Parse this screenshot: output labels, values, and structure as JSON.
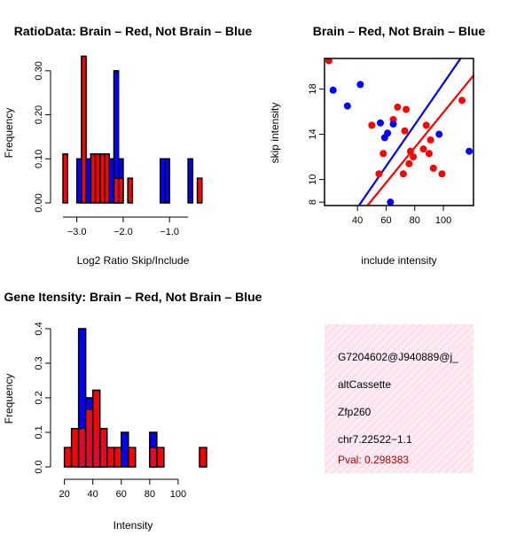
{
  "colors": {
    "red": "#ff0000",
    "blue": "#0000ff",
    "purple": "#a020a0",
    "dark": "#000000",
    "pink_bg": "#fbe0ef"
  },
  "chart_data": [
    {
      "id": "hist_ratio",
      "type": "bar",
      "title": "RatioData: Brain – Red, Not Brain – Blue",
      "xlabel": "Log2 Ratio Skip/Include",
      "ylabel": "Frequency",
      "xlim": [
        -3.3,
        -0.2
      ],
      "ylim": [
        0,
        0.35
      ],
      "xticks": [
        -3.0,
        -2.0,
        -1.0
      ],
      "xtick_labels": [
        "−3.0",
        "−2.0",
        "−1.0"
      ],
      "yticks": [
        0.0,
        0.1,
        0.2,
        0.3
      ],
      "ytick_labels": [
        "0.00",
        "0.10",
        "0.20",
        "0.30"
      ],
      "bin_width": 0.1,
      "series": [
        {
          "name": "Not Brain",
          "color": "blue",
          "bins": [
            [
              -3.0,
              0.1
            ],
            [
              -2.8,
              0.1
            ],
            [
              -2.3,
              0.1
            ],
            [
              -2.2,
              0.3
            ],
            [
              -2.1,
              0.1
            ],
            [
              -1.2,
              0.1
            ],
            [
              -1.1,
              0.1
            ],
            [
              -0.6,
              0.1
            ]
          ]
        },
        {
          "name": "Brain",
          "color": "red",
          "bins": [
            [
              -3.3,
              0.111
            ],
            [
              -2.9,
              0.333
            ],
            [
              -2.7,
              0.111
            ],
            [
              -2.6,
              0.111
            ],
            [
              -2.5,
              0.111
            ],
            [
              -2.4,
              0.111
            ],
            [
              -2.2,
              0.056
            ],
            [
              -2.1,
              0.056
            ],
            [
              -1.9,
              0.056
            ],
            [
              -0.4,
              0.056
            ]
          ]
        }
      ]
    },
    {
      "id": "scatter_intensity",
      "type": "scatter",
      "title": "Brain – Red, Not Brain – Blue",
      "xlabel": "include intensity",
      "ylabel": "skip intensity",
      "xlim": [
        17,
        121
      ],
      "ylim": [
        7.7,
        20.7
      ],
      "xticks": [
        40,
        60,
        80,
        100
      ],
      "yticks": [
        8,
        10,
        14,
        18
      ],
      "series": [
        {
          "name": "Brain",
          "color": "red",
          "points": [
            [
              20,
              20.5
            ],
            [
              50,
              14.8
            ],
            [
              55,
              10.5
            ],
            [
              58,
              12.3
            ],
            [
              65,
              15.3
            ],
            [
              68,
              16.4
            ],
            [
              72,
              10.5
            ],
            [
              73,
              14.3
            ],
            [
              74,
              16.2
            ],
            [
              76,
              11.4
            ],
            [
              77,
              12.5
            ],
            [
              79,
              12.0
            ],
            [
              86,
              12.7
            ],
            [
              88,
              14.8
            ],
            [
              90,
              12.3
            ],
            [
              91,
              13.5
            ],
            [
              93,
              11.0
            ],
            [
              99,
              10.5
            ],
            [
              113,
              17.0
            ]
          ],
          "fit": [
            [
              47,
              7.7
            ],
            [
              121,
              19.2
            ]
          ]
        },
        {
          "name": "Not Brain",
          "color": "blue",
          "points": [
            [
              23,
              17.9
            ],
            [
              33,
              16.5
            ],
            [
              42,
              18.4
            ],
            [
              56,
              15.0
            ],
            [
              59,
              13.7
            ],
            [
              61,
              14.1
            ],
            [
              63,
              8.0
            ],
            [
              65,
              14.9
            ],
            [
              97,
              14.0
            ],
            [
              118,
              12.5
            ]
          ],
          "fit": [
            [
              41,
              7.7
            ],
            [
              112,
              20.7
            ]
          ]
        }
      ]
    },
    {
      "id": "hist_intensity",
      "type": "bar",
      "title": "Gene Itensity: Brain – Red, Not Brain – Blue",
      "xlabel": "Intensity",
      "ylabel": "Frequency",
      "xlim": [
        19,
        120
      ],
      "ylim": [
        0,
        0.4
      ],
      "xticks": [
        20,
        40,
        60,
        80,
        100
      ],
      "yticks": [
        0.0,
        0.1,
        0.2,
        0.3,
        0.4
      ],
      "ytick_labels": [
        "0.0",
        "0.1",
        "0.2",
        "0.3",
        "0.4"
      ],
      "bin_width": 5,
      "series": [
        {
          "name": "Not Brain",
          "color": "blue",
          "bins": [
            [
              30,
              0.4
            ],
            [
              35,
              0.2
            ],
            [
              40,
              0.1
            ],
            [
              45,
              0.1
            ],
            [
              60,
              0.1
            ],
            [
              80,
              0.1
            ]
          ]
        },
        {
          "name": "Brain",
          "color": "red",
          "bins": [
            [
              20,
              0.056
            ],
            [
              25,
              0.111
            ],
            [
              30,
              0.111
            ],
            [
              35,
              0.167
            ],
            [
              40,
              0.222
            ],
            [
              45,
              0.111
            ],
            [
              50,
              0.056
            ],
            [
              55,
              0.056
            ],
            [
              65,
              0.056
            ],
            [
              80,
              0.056
            ],
            [
              85,
              0.056
            ],
            [
              115,
              0.056
            ]
          ]
        }
      ]
    }
  ],
  "info": {
    "event_id": "G7204602@J940889@j_",
    "event_type": "altCassette",
    "gene": "Zfp260",
    "location": "chr7.22522−1.1",
    "pval": "Pval: 0.298383"
  }
}
